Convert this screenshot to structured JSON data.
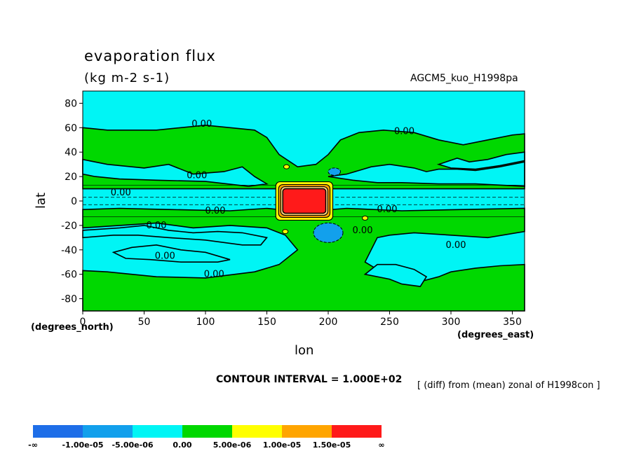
{
  "header": {
    "title": "evaporation flux",
    "units": "(kg m-2 s-1)",
    "model": "AGCM5_kuo_H1998pa"
  },
  "footer": {
    "contour_interval": "CONTOUR INTERVAL = 1.000E+02",
    "note": "[ (diff) from (mean) zonal of H1998con ]"
  },
  "chart_data": {
    "type": "heatmap",
    "title": "evaporation flux",
    "subtitle": "(kg m-2 s-1)",
    "xlabel": "lon",
    "ylabel": "lat",
    "x_units": "(degrees_east)",
    "y_units": "(degrees_north)",
    "xlim": [
      0,
      360
    ],
    "ylim": [
      -90,
      90
    ],
    "x_ticks": [
      0,
      50,
      100,
      150,
      200,
      250,
      300,
      350
    ],
    "y_ticks": [
      80,
      60,
      40,
      20,
      0,
      -20,
      -40,
      -60,
      -80
    ],
    "grid": false,
    "colorbar": {
      "colors": [
        "#1e6ee8",
        "#12a0ec",
        "#00f5f5",
        "#00d800",
        "#ffff00",
        "#ffa500",
        "#ff1a1a"
      ],
      "labels": [
        "-∞",
        "-1.00e-05",
        "-5.00e-06",
        "0.00",
        "5.00e-06",
        "1.00e-05",
        "1.50e-05",
        "∞"
      ]
    },
    "contour_labels": [
      {
        "text": "0.00",
        "lon": 97,
        "lat": 63
      },
      {
        "text": "0.00",
        "lon": 262,
        "lat": 57
      },
      {
        "text": "0.00",
        "lon": 93,
        "lat": 21
      },
      {
        "text": "0.00",
        "lon": 31,
        "lat": 7
      },
      {
        "text": "0.00",
        "lon": 108,
        "lat": -8
      },
      {
        "text": "0.00",
        "lon": 60,
        "lat": -20
      },
      {
        "text": "0.00",
        "lon": 248,
        "lat": -7
      },
      {
        "text": "0.00",
        "lon": 228,
        "lat": -24
      },
      {
        "text": "0.00",
        "lon": 304,
        "lat": -36
      },
      {
        "text": "0.00",
        "lon": 67,
        "lat": -45
      },
      {
        "text": "0.00",
        "lon": 107,
        "lat": -60
      }
    ],
    "green_regions": [
      [
        [
          0,
          60
        ],
        [
          20,
          58
        ],
        [
          60,
          58
        ],
        [
          100,
          62
        ],
        [
          140,
          58
        ],
        [
          150,
          52
        ],
        [
          160,
          38
        ],
        [
          175,
          28
        ],
        [
          190,
          30
        ],
        [
          200,
          38
        ],
        [
          210,
          50
        ],
        [
          225,
          56
        ],
        [
          245,
          58
        ],
        [
          270,
          56
        ],
        [
          290,
          50
        ],
        [
          310,
          46
        ],
        [
          330,
          50
        ],
        [
          350,
          54
        ],
        [
          360,
          55
        ],
        [
          360,
          10
        ],
        [
          0,
          10
        ]
      ],
      [
        [
          0,
          -7
        ],
        [
          30,
          -6
        ],
        [
          70,
          -7
        ],
        [
          120,
          -8
        ],
        [
          150,
          -6
        ],
        [
          170,
          -8
        ],
        [
          190,
          -8
        ],
        [
          215,
          -6
        ],
        [
          260,
          -8
        ],
        [
          310,
          -7
        ],
        [
          360,
          -6
        ],
        [
          360,
          -25
        ],
        [
          330,
          -30
        ],
        [
          300,
          -28
        ],
        [
          270,
          -26
        ],
        [
          250,
          -28
        ],
        [
          240,
          -30
        ],
        [
          230,
          -50
        ],
        [
          240,
          -56
        ],
        [
          255,
          -62
        ],
        [
          275,
          -66
        ],
        [
          290,
          -62
        ],
        [
          300,
          -58
        ],
        [
          320,
          -55
        ],
        [
          340,
          -53
        ],
        [
          360,
          -52
        ],
        [
          360,
          -90
        ],
        [
          0,
          -90
        ],
        [
          0,
          -57
        ],
        [
          20,
          -58
        ],
        [
          60,
          -62
        ],
        [
          100,
          -63
        ],
        [
          140,
          -58
        ],
        [
          160,
          -52
        ],
        [
          175,
          -40
        ],
        [
          165,
          -28
        ],
        [
          150,
          -22
        ],
        [
          120,
          -20
        ],
        [
          90,
          -22
        ],
        [
          60,
          -18
        ],
        [
          30,
          -20
        ],
        [
          0,
          -22
        ]
      ]
    ],
    "cyan_regions": [
      [
        [
          0,
          34
        ],
        [
          20,
          30
        ],
        [
          50,
          27
        ],
        [
          70,
          30
        ],
        [
          90,
          22
        ],
        [
          115,
          24
        ],
        [
          130,
          28
        ],
        [
          140,
          20
        ],
        [
          150,
          14
        ],
        [
          135,
          12
        ],
        [
          100,
          16
        ],
        [
          60,
          17
        ],
        [
          30,
          18
        ],
        [
          10,
          20
        ],
        [
          0,
          22
        ]
      ],
      [
        [
          200,
          20
        ],
        [
          215,
          22
        ],
        [
          235,
          28
        ],
        [
          250,
          30
        ],
        [
          270,
          27
        ],
        [
          280,
          24
        ],
        [
          290,
          26
        ],
        [
          305,
          26
        ],
        [
          320,
          25
        ],
        [
          340,
          28
        ],
        [
          360,
          32
        ],
        [
          360,
          12
        ],
        [
          320,
          14
        ],
        [
          290,
          14
        ],
        [
          260,
          15
        ],
        [
          240,
          15
        ],
        [
          220,
          17
        ]
      ],
      [
        [
          290,
          30
        ],
        [
          305,
          35
        ],
        [
          315,
          32
        ],
        [
          330,
          34
        ],
        [
          345,
          38
        ],
        [
          360,
          40
        ],
        [
          360,
          33
        ],
        [
          340,
          29
        ],
        [
          320,
          26
        ],
        [
          300,
          27
        ]
      ],
      [
        [
          0,
          -30
        ],
        [
          25,
          -28
        ],
        [
          45,
          -28
        ],
        [
          70,
          -30
        ],
        [
          100,
          -32
        ],
        [
          130,
          -36
        ],
        [
          145,
          -36
        ],
        [
          150,
          -30
        ],
        [
          130,
          -26
        ],
        [
          110,
          -25
        ],
        [
          90,
          -26
        ],
        [
          70,
          -24
        ],
        [
          50,
          -20
        ],
        [
          30,
          -22
        ],
        [
          0,
          -24
        ]
      ],
      [
        [
          25,
          -42
        ],
        [
          40,
          -38
        ],
        [
          60,
          -36
        ],
        [
          80,
          -40
        ],
        [
          100,
          -42
        ],
        [
          120,
          -48
        ],
        [
          110,
          -50
        ],
        [
          80,
          -50
        ],
        [
          55,
          -48
        ],
        [
          35,
          -47
        ]
      ],
      [
        [
          230,
          -60
        ],
        [
          250,
          -64
        ],
        [
          260,
          -68
        ],
        [
          275,
          -70
        ],
        [
          280,
          -62
        ],
        [
          270,
          -56
        ],
        [
          255,
          -52
        ],
        [
          240,
          -52
        ]
      ]
    ],
    "blue_blobs": [
      {
        "lon": 200,
        "lat": -26,
        "rlon": 12,
        "rlat": 8
      },
      {
        "lon": 205,
        "lat": 24,
        "rlon": 5,
        "rlat": 3
      }
    ],
    "red_block": {
      "lon": [
        163,
        198
      ],
      "lat": [
        -10,
        10
      ]
    },
    "yellow_spots": [
      {
        "lon": 166,
        "lat": 8
      },
      {
        "lon": 197,
        "lat": 8
      },
      {
        "lon": 166,
        "lat": -8
      },
      {
        "lon": 197,
        "lat": -8
      },
      {
        "lon": 165,
        "lat": -25
      },
      {
        "lon": 230,
        "lat": -14
      },
      {
        "lon": 166,
        "lat": 28
      }
    ]
  }
}
